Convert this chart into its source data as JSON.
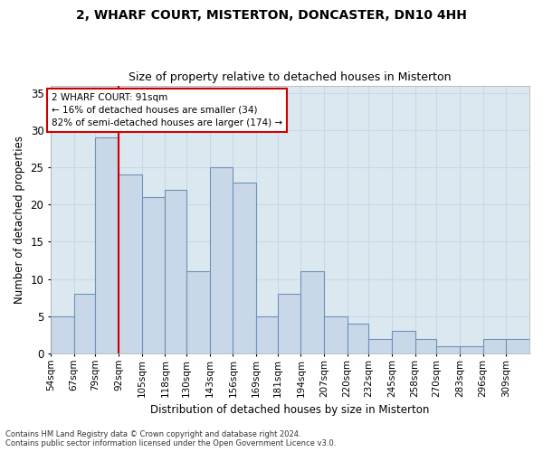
{
  "title_line1": "2, WHARF COURT, MISTERTON, DONCASTER, DN10 4HH",
  "title_line2": "Size of property relative to detached houses in Misterton",
  "xlabel": "Distribution of detached houses by size in Misterton",
  "ylabel": "Number of detached properties",
  "bin_edges": [
    54,
    67,
    79,
    92,
    105,
    118,
    130,
    143,
    156,
    169,
    181,
    194,
    207,
    220,
    232,
    245,
    258,
    270,
    283,
    296,
    309,
    322
  ],
  "bin_labels": [
    "54sqm",
    "67sqm",
    "79sqm",
    "92sqm",
    "105sqm",
    "118sqm",
    "130sqm",
    "143sqm",
    "156sqm",
    "169sqm",
    "181sqm",
    "194sqm",
    "207sqm",
    "220sqm",
    "232sqm",
    "245sqm",
    "258sqm",
    "270sqm",
    "283sqm",
    "296sqm",
    "309sqm"
  ],
  "values": [
    5,
    8,
    29,
    24,
    21,
    22,
    11,
    25,
    23,
    5,
    8,
    11,
    5,
    4,
    2,
    3,
    2,
    1,
    1,
    2,
    2
  ],
  "bar_color": "#c8d8e8",
  "bar_edge_color": "#7090b8",
  "vline_x": 92,
  "vline_color": "#cc0000",
  "annotation_text": "2 WHARF COURT: 91sqm\n← 16% of detached houses are smaller (34)\n82% of semi-detached houses are larger (174) →",
  "annotation_box_color": "#ffffff",
  "annotation_box_edge": "#cc0000",
  "ylim": [
    0,
    36
  ],
  "yticks": [
    0,
    5,
    10,
    15,
    20,
    25,
    30,
    35
  ],
  "footnote": "Contains HM Land Registry data © Crown copyright and database right 2024.\nContains public sector information licensed under the Open Government Licence v3.0.",
  "grid_color": "#c8d8e8",
  "background_color": "#dce8f0"
}
